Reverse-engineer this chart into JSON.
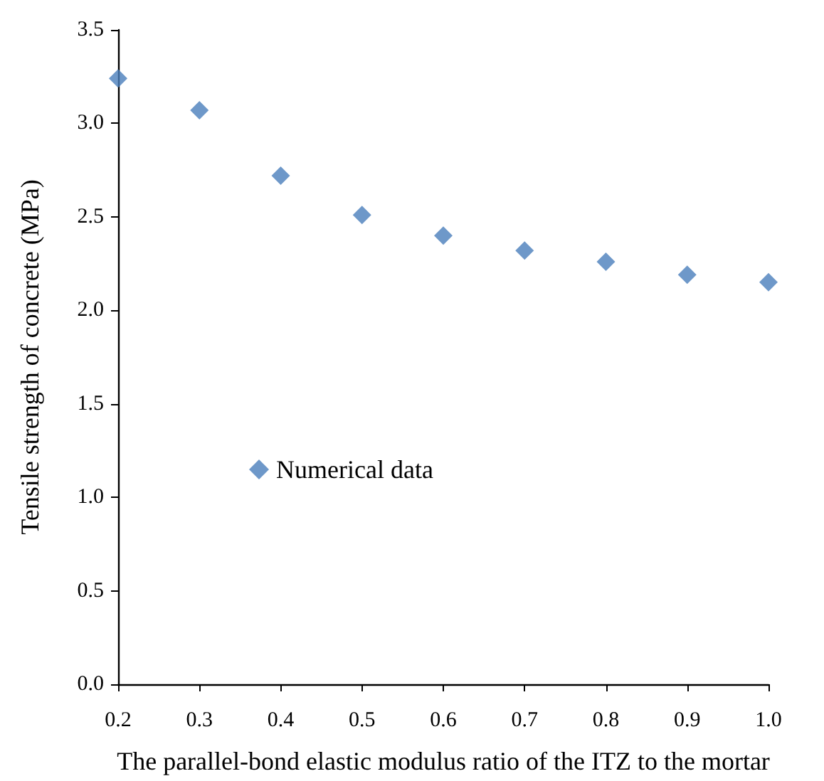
{
  "chart_data": {
    "type": "scatter",
    "xlabel": "The parallel-bond elastic modulus ratio of the ITZ to the mortar",
    "ylabel": "Tensile strength of concrete (MPa)",
    "x": [
      0.2,
      0.3,
      0.4,
      0.5,
      0.6,
      0.7,
      0.8,
      0.9,
      1.0
    ],
    "series": [
      {
        "name": "Numerical data",
        "color": "#4a7ebb",
        "values": [
          3.24,
          3.07,
          2.72,
          2.51,
          2.4,
          2.32,
          2.26,
          2.19,
          2.15
        ]
      }
    ],
    "xlim": [
      0.2,
      1.0
    ],
    "xticks": [
      {
        "value": 0.2,
        "label": "0.2"
      },
      {
        "value": 0.3,
        "label": "0.3"
      },
      {
        "value": 0.4,
        "label": "0.4"
      },
      {
        "value": 0.5,
        "label": "0.5"
      },
      {
        "value": 0.6,
        "label": "0.6"
      },
      {
        "value": 0.7,
        "label": "0.7"
      },
      {
        "value": 0.8,
        "label": "0.8"
      },
      {
        "value": 0.9,
        "label": "0.9"
      },
      {
        "value": 1.0,
        "label": "1.0"
      }
    ],
    "ylim": [
      0,
      3.5
    ],
    "yticks": [
      {
        "value": 0,
        "label": "0.0"
      },
      {
        "value": 0.5,
        "label": "0.5"
      },
      {
        "value": 1.0,
        "label": "1.0"
      },
      {
        "value": 1.5,
        "label": "1.5"
      },
      {
        "value": 2.0,
        "label": "2.0"
      },
      {
        "value": 2.5,
        "label": "2.5"
      },
      {
        "value": 3.0,
        "label": "3.0"
      },
      {
        "value": 3.5,
        "label": "3.5"
      }
    ],
    "grid": false,
    "legend": "center",
    "marker": "diamond"
  }
}
